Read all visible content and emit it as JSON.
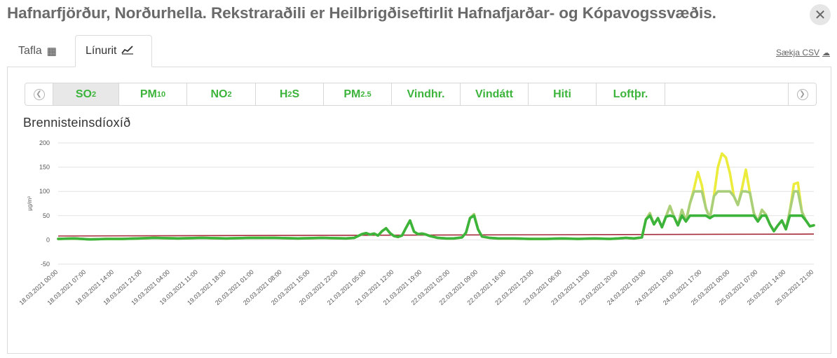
{
  "window": {
    "title": "Hafnarfjörður, Norðurhella. Rekstraraðili er Heilbrigðiseftirlit Hafnafjarðar- og Kópavogssvæðis.",
    "close_symbol": "✕"
  },
  "tabs": [
    {
      "label": "Tafla",
      "icon": "table-icon",
      "active": false
    },
    {
      "label": "Línurit",
      "icon": "line-chart-icon",
      "active": true
    }
  ],
  "csv_link": "Sækja CSV",
  "pollutants": [
    {
      "main": "SO",
      "sub": "2",
      "active": true
    },
    {
      "main": "PM",
      "sub": "10",
      "active": false
    },
    {
      "main": "NO",
      "sub": "2",
      "active": false
    },
    {
      "main": "H",
      "sub": "2",
      "tail": "S",
      "active": false
    },
    {
      "main": "PM",
      "sub": "2.5",
      "active": false
    },
    {
      "main": "Vindhr.",
      "active": false
    },
    {
      "main": "Vindátt",
      "active": false
    },
    {
      "main": "Hiti",
      "active": false
    },
    {
      "main": "Loftþr.",
      "active": false
    }
  ],
  "colors": {
    "green": "#3cb43c",
    "light_green": "#a9cf7a",
    "yellow": "#ecec3c",
    "limit_line": "#a52a3a",
    "grid": "#e2e2e2"
  },
  "chart_data": {
    "type": "line",
    "title": "Brennisteinsdíoxíð",
    "ylabel": "µg/m³",
    "ylim": [
      -50,
      200
    ],
    "yticks": [
      -50,
      0,
      50,
      100,
      150,
      200
    ],
    "grid": true,
    "x_tick_labels": [
      "18.03.2021 00:00",
      "18.03.2021 07:00",
      "18.03.2021 14:00",
      "18.03.2021 21:00",
      "19.03.2021 04:00",
      "19.03.2021 11:00",
      "19.03.2021 18:00",
      "20.03.2021 01:00",
      "20.03.2021 08:00",
      "20.03.2021 15:00",
      "20.03.2021 22:00",
      "21.03.2021 05:00",
      "21.03.2021 12:00",
      "21.03.2021 19:00",
      "22.03.2021 02:00",
      "22.03.2021 09:00",
      "22.03.2021 16:00",
      "22.03.2021 23:00",
      "23.03.2021 06:00",
      "23.03.2021 13:00",
      "23.03.2021 20:00",
      "24.03.2021 03:00",
      "24.03.2021 10:00",
      "24.03.2021 17:00",
      "25.03.2021 00:00",
      "25.03.2021 07:00",
      "25.03.2021 14:00",
      "25.03.2021 21:00"
    ],
    "x_hours_per_tick": 7,
    "x_range_hours": [
      0,
      189
    ],
    "series": [
      {
        "values": [
          [
            0,
            2
          ],
          [
            4,
            3
          ],
          [
            8,
            1
          ],
          [
            12,
            2
          ],
          [
            16,
            2
          ],
          [
            20,
            3
          ],
          [
            24,
            4
          ],
          [
            30,
            3
          ],
          [
            36,
            4
          ],
          [
            42,
            3
          ],
          [
            48,
            4
          ],
          [
            54,
            4
          ],
          [
            60,
            3
          ],
          [
            66,
            4
          ],
          [
            72,
            3
          ],
          [
            74,
            4
          ],
          [
            76,
            12
          ],
          [
            77,
            14
          ],
          [
            78,
            11
          ],
          [
            79,
            13
          ],
          [
            80,
            9
          ],
          [
            81,
            18
          ],
          [
            82,
            24
          ],
          [
            83,
            14
          ],
          [
            84,
            8
          ],
          [
            85,
            6
          ],
          [
            86,
            9
          ],
          [
            87,
            25
          ],
          [
            88,
            40
          ],
          [
            89,
            17
          ],
          [
            90,
            12
          ],
          [
            91,
            13
          ],
          [
            92,
            11
          ],
          [
            93,
            8
          ],
          [
            95,
            4
          ],
          [
            97,
            3
          ],
          [
            99,
            3
          ],
          [
            101,
            5
          ],
          [
            102,
            15
          ],
          [
            103,
            45
          ],
          [
            104,
            53
          ],
          [
            105,
            22
          ],
          [
            106,
            7
          ],
          [
            108,
            4
          ],
          [
            110,
            3
          ],
          [
            114,
            3
          ],
          [
            118,
            2
          ],
          [
            122,
            2
          ],
          [
            126,
            3
          ],
          [
            130,
            2
          ],
          [
            134,
            3
          ],
          [
            138,
            2
          ],
          [
            142,
            4
          ],
          [
            144,
            3
          ],
          [
            146,
            5
          ],
          [
            147,
            42
          ],
          [
            148,
            55
          ],
          [
            149,
            32
          ],
          [
            150,
            45
          ],
          [
            151,
            26
          ],
          [
            152,
            48
          ],
          [
            153,
            70
          ],
          [
            154,
            48
          ],
          [
            155,
            30
          ],
          [
            156,
            62
          ],
          [
            157,
            38
          ],
          [
            158,
            75
          ],
          [
            159,
            105
          ],
          [
            160,
            140
          ],
          [
            161,
            112
          ],
          [
            162,
            65
          ],
          [
            163,
            45
          ],
          [
            164,
            90
          ],
          [
            165,
            150
          ],
          [
            166,
            178
          ],
          [
            167,
            170
          ],
          [
            168,
            138
          ],
          [
            169,
            90
          ],
          [
            170,
            72
          ],
          [
            171,
            105
          ],
          [
            172,
            145
          ],
          [
            173,
            98
          ],
          [
            174,
            55
          ],
          [
            175,
            38
          ],
          [
            176,
            62
          ],
          [
            177,
            52
          ],
          [
            178,
            32
          ],
          [
            179,
            18
          ],
          [
            180,
            30
          ],
          [
            181,
            40
          ],
          [
            182,
            22
          ],
          [
            183,
            60
          ],
          [
            184,
            115
          ],
          [
            185,
            118
          ],
          [
            186,
            58
          ],
          [
            187,
            40
          ],
          [
            188,
            28
          ],
          [
            189,
            30
          ]
        ]
      }
    ],
    "limit_line": {
      "value": 8,
      "end_value": 12
    }
  }
}
